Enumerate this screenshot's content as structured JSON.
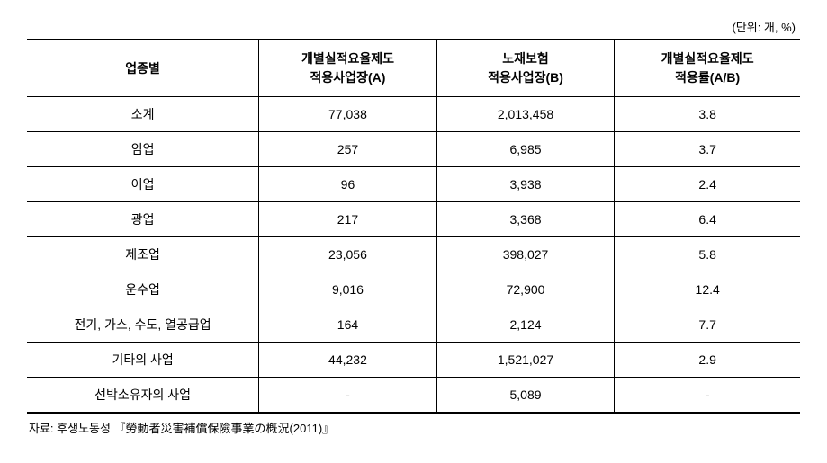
{
  "unit_label": "(단위: 개, %)",
  "columns": [
    "업종별",
    "개별실적요율제도\n적용사업장(A)",
    "노재보험\n적용사업장(B)",
    "개별실적요율제도\n적용률(A/B)"
  ],
  "column_widths": [
    "30%",
    "23%",
    "23%",
    "24%"
  ],
  "rows": [
    {
      "label": "소계",
      "a": "77,038",
      "b": "2,013,458",
      "rate": "3.8"
    },
    {
      "label": "임업",
      "a": "257",
      "b": "6,985",
      "rate": "3.7"
    },
    {
      "label": "어업",
      "a": "96",
      "b": "3,938",
      "rate": "2.4"
    },
    {
      "label": "광업",
      "a": "217",
      "b": "3,368",
      "rate": "6.4"
    },
    {
      "label": "제조업",
      "a": "23,056",
      "b": "398,027",
      "rate": "5.8"
    },
    {
      "label": "운수업",
      "a": "9,016",
      "b": "72,900",
      "rate": "12.4"
    },
    {
      "label": "전기, 가스, 수도, 열공급업",
      "a": "164",
      "b": "2,124",
      "rate": "7.7"
    },
    {
      "label": "기타의 사업",
      "a": "44,232",
      "b": "1,521,027",
      "rate": "2.9"
    },
    {
      "label": "선박소유자의 사업",
      "a": "-",
      "b": "5,089",
      "rate": "-"
    }
  ],
  "source_note": "자료: 후생노동성 『勞動者災害補償保險事業の槪況(2011)』",
  "styling": {
    "font_family": "Malgun Gothic",
    "header_font_size": 14,
    "cell_font_size": 14,
    "unit_font_size": 13,
    "source_font_size": 13,
    "border_top_width": 2,
    "border_bottom_width": 2,
    "row_border_width": 1,
    "text_color": "#000000",
    "border_color": "#000000",
    "background_color": "#ffffff",
    "text_align": "center",
    "header_font_weight": "bold"
  }
}
